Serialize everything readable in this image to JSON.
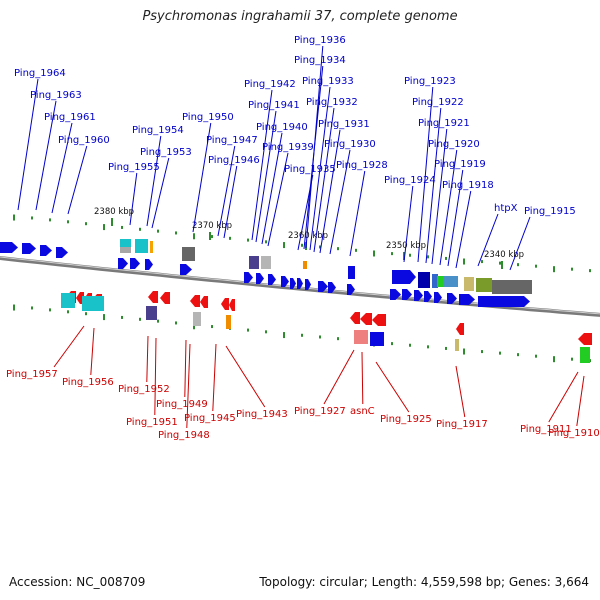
{
  "title": "Psychromonas ingrahamii 37, complete genome",
  "footer": {
    "accession": "Accession: NC_008709",
    "summary": "Topology: circular; Length: 4,559,598 bp; Genes: 3,664"
  },
  "colors": {
    "forward_label": "#0000cc",
    "reverse_label": "#cc0000",
    "forward_gene": "#0a0ae0",
    "reverse_gene": "#ee1111",
    "backbone": "#7a7a7a",
    "tick": "#2e8b2e"
  },
  "scale_labels": [
    "2380 kbp",
    "2370 kbp",
    "2360 kbp",
    "2350 kbp",
    "2340 kbp"
  ],
  "forward_genes": [
    "Ping_1964",
    "Ping_1963",
    "Ping_1961",
    "Ping_1960",
    "Ping_1955",
    "Ping_1954",
    "Ping_1953",
    "Ping_1950",
    "Ping_1947",
    "Ping_1946",
    "Ping_1942",
    "Ping_1941",
    "Ping_1940",
    "Ping_1939",
    "Ping_1936",
    "Ping_1934",
    "Ping_1933",
    "Ping_1932",
    "Ping_1931",
    "Ping_1935",
    "Ping_1930",
    "Ping_1928",
    "Ping_1923",
    "Ping_1922",
    "Ping_1921",
    "Ping_1920",
    "Ping_1919",
    "Ping_1924",
    "Ping_1918",
    "htpX",
    "Ping_1915"
  ],
  "reverse_genes": [
    "Ping_1957",
    "Ping_1956",
    "Ping_1952",
    "Ping_1951",
    "Ping_1949",
    "Ping_1948",
    "Ping_1945",
    "Ping_1943",
    "Ping_1927",
    "asnC",
    "Ping_1925",
    "Ping_1917",
    "Ping_1911",
    "Ping_1910"
  ]
}
